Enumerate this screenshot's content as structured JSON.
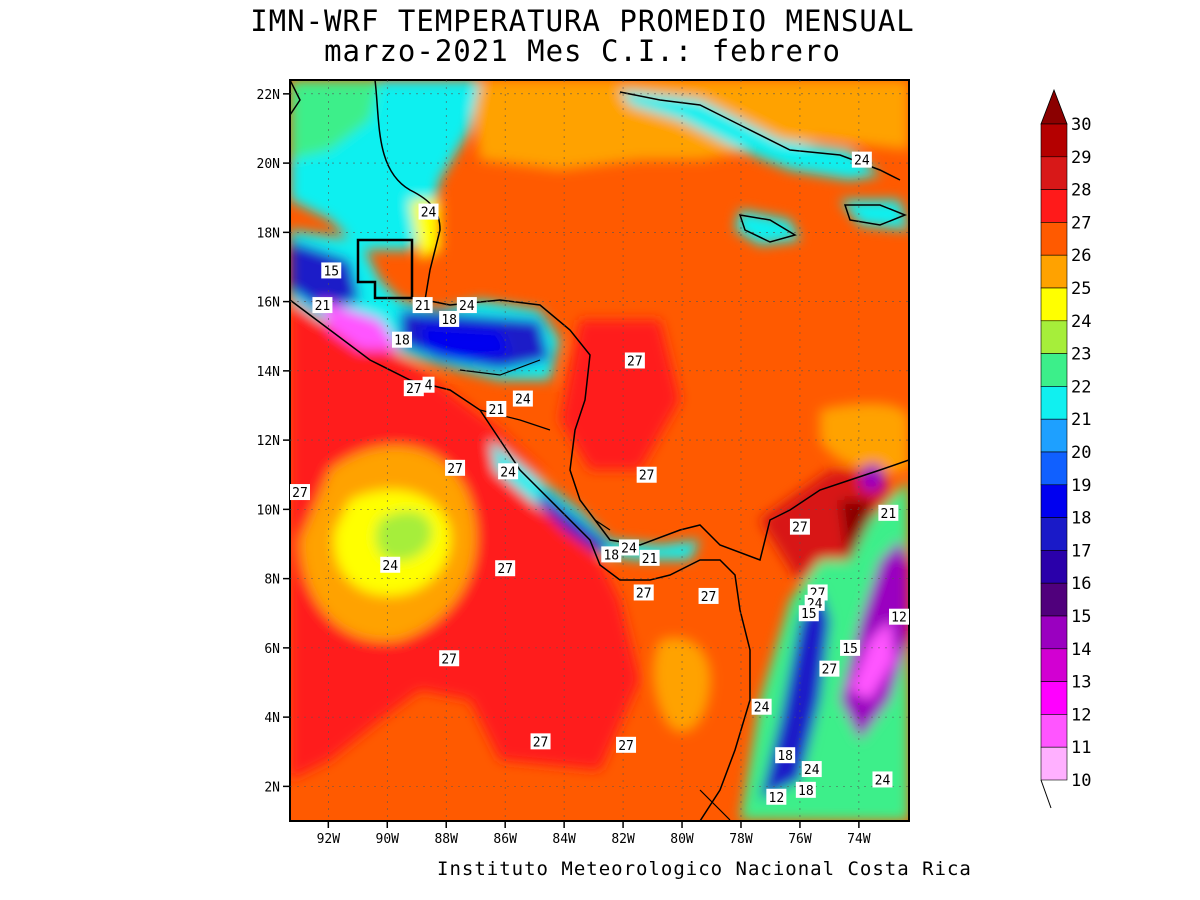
{
  "title_line1": "IMN-WRF  TEMPERATURA PROMEDIO MENSUAL",
  "title_line2": "marzo-2021 Mes C.I.: febrero",
  "footer": "Instituto Meteorologico Nacional Costa Rica",
  "lat_ticks": [
    "22N",
    "20N",
    "18N",
    "16N",
    "14N",
    "12N",
    "10N",
    "8N",
    "6N",
    "4N",
    "2N"
  ],
  "lon_ticks": [
    "92W",
    "90W",
    "88W",
    "86W",
    "84W",
    "82W",
    "80W",
    "78W",
    "76W",
    "74W"
  ],
  "colorbar": {
    "levels": [
      "30",
      "29",
      "28",
      "27",
      "26",
      "25",
      "24",
      "23",
      "22",
      "21",
      "20",
      "19",
      "18",
      "17",
      "16",
      "15",
      "14",
      "13",
      "12",
      "11",
      "10"
    ],
    "colors": [
      "#8b0000",
      "#b40000",
      "#d81818",
      "#ff1a1a",
      "#ff5a00",
      "#ffa200",
      "#ffff00",
      "#a6ee3a",
      "#3cef8a",
      "#10f0f0",
      "#1ea0ff",
      "#1060ff",
      "#0000f0",
      "#1a1ac8",
      "#2a00aa",
      "#50007c",
      "#9a00c0",
      "#d200d2",
      "#ff00ff",
      "#ff55ff",
      "#ffb0ff"
    ]
  },
  "contour_labels": [
    {
      "text": "24",
      "lon": -73.9,
      "lat": 20.1
    },
    {
      "text": "24",
      "lon": -88.6,
      "lat": 18.6
    },
    {
      "text": "15",
      "lon": -91.9,
      "lat": 16.9
    },
    {
      "text": "21",
      "lon": -92.2,
      "lat": 15.9
    },
    {
      "text": "21",
      "lon": -88.8,
      "lat": 15.9
    },
    {
      "text": "24",
      "lon": -87.3,
      "lat": 15.9
    },
    {
      "text": "18",
      "lon": -87.9,
      "lat": 15.5
    },
    {
      "text": "18",
      "lon": -89.5,
      "lat": 14.9
    },
    {
      "text": "27",
      "lon": -81.6,
      "lat": 14.3
    },
    {
      "text": "27",
      "lon": -89.1,
      "lat": 13.5
    },
    {
      "text": "4",
      "lon": -88.6,
      "lat": 13.6
    },
    {
      "text": "24",
      "lon": -85.4,
      "lat": 13.2
    },
    {
      "text": "21",
      "lon": -86.3,
      "lat": 12.9
    },
    {
      "text": "27",
      "lon": -87.7,
      "lat": 11.2
    },
    {
      "text": "24",
      "lon": -85.9,
      "lat": 11.1
    },
    {
      "text": "27",
      "lon": -81.2,
      "lat": 11.0
    },
    {
      "text": "27",
      "lon": -93.5,
      "lat": 10.5
    },
    {
      "text": "21",
      "lon": -73.0,
      "lat": 9.9
    },
    {
      "text": "27",
      "lon": -76.0,
      "lat": 9.5
    },
    {
      "text": "24",
      "lon": -89.9,
      "lat": 8.4
    },
    {
      "text": "27",
      "lon": -86.0,
      "lat": 8.3
    },
    {
      "text": "18",
      "lon": -82.4,
      "lat": 8.7
    },
    {
      "text": "24",
      "lon": -81.8,
      "lat": 8.9
    },
    {
      "text": "21",
      "lon": -81.1,
      "lat": 8.6
    },
    {
      "text": "27",
      "lon": -81.3,
      "lat": 7.6
    },
    {
      "text": "27",
      "lon": -79.1,
      "lat": 7.5
    },
    {
      "text": "27",
      "lon": -75.4,
      "lat": 7.6
    },
    {
      "text": "24",
      "lon": -75.5,
      "lat": 7.3
    },
    {
      "text": "15",
      "lon": -75.7,
      "lat": 7.0
    },
    {
      "text": "12",
      "lon": -72.5,
      "lat": 6.9
    },
    {
      "text": "15",
      "lon": -74.3,
      "lat": 6.0
    },
    {
      "text": "27",
      "lon": -87.9,
      "lat": 5.7
    },
    {
      "text": "27",
      "lon": -75.0,
      "lat": 5.4
    },
    {
      "text": "24",
      "lon": -77.3,
      "lat": 4.3
    },
    {
      "text": "27",
      "lon": -84.8,
      "lat": 3.3
    },
    {
      "text": "27",
      "lon": -81.9,
      "lat": 3.2
    },
    {
      "text": "18",
      "lon": -76.5,
      "lat": 2.9
    },
    {
      "text": "24",
      "lon": -75.6,
      "lat": 2.5
    },
    {
      "text": "24",
      "lon": -73.2,
      "lat": 2.2
    },
    {
      "text": "18",
      "lon": -75.8,
      "lat": 1.9
    },
    {
      "text": "12",
      "lon": -76.8,
      "lat": 1.7
    }
  ]
}
